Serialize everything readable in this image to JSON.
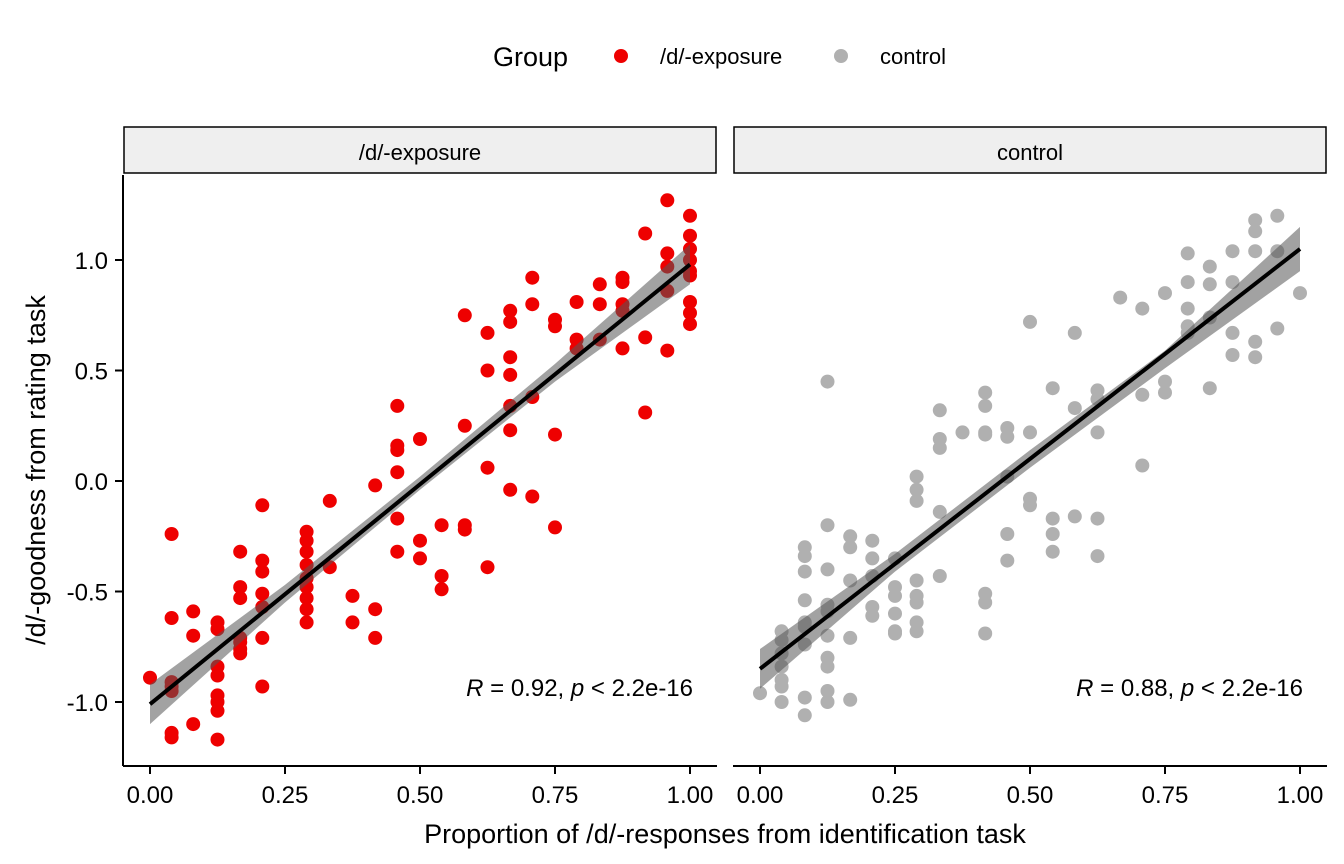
{
  "chart_data": {
    "type": "scatter",
    "xlabel": "Proportion of /d/-responses from identification task",
    "ylabel": "/d/-goodness from rating task",
    "xlim": [
      0,
      1
    ],
    "ylim": [
      -1.3,
      1.4
    ],
    "x_ticks": [
      "0.00",
      "0.25",
      "0.50",
      "0.75",
      "1.00"
    ],
    "x_tick_values": [
      0,
      0.25,
      0.5,
      0.75,
      1.0
    ],
    "y_ticks": [
      "-1.0",
      "-0.5",
      "0.0",
      "0.5",
      "1.0"
    ],
    "y_tick_values": [
      -1.0,
      -0.5,
      0.0,
      0.5,
      1.0
    ],
    "grid": false,
    "legend": {
      "title": "Group",
      "placement": "top",
      "entries": [
        {
          "label": "/d/-exposure",
          "color": "#ee0000"
        },
        {
          "label": "control",
          "color": "#b0b0b0"
        }
      ]
    },
    "panels": [
      {
        "strip": "/d/-exposure",
        "color": "#ee0000",
        "annotation": {
          "r_label": "R",
          "r_text": " = 0.92, ",
          "p_label": "p",
          "p_text": " < 2.2e-16"
        },
        "fit": {
          "x0": 0.0,
          "y0": -1.01,
          "x1": 1.0,
          "y1": 0.98
        },
        "ci": [
          {
            "x": 0.0,
            "lo": -1.1,
            "hi": -0.92
          },
          {
            "x": 0.25,
            "lo": -0.55,
            "hi": -0.47
          },
          {
            "x": 0.5,
            "lo": -0.04,
            "hi": 0.02
          },
          {
            "x": 0.75,
            "lo": 0.45,
            "hi": 0.53
          },
          {
            "x": 1.0,
            "lo": 0.89,
            "hi": 1.07
          }
        ],
        "points": [
          [
            0.0,
            -0.89
          ],
          [
            0.04,
            -0.24
          ],
          [
            0.04,
            -0.62
          ],
          [
            0.04,
            -0.91
          ],
          [
            0.04,
            -0.93
          ],
          [
            0.04,
            -0.95
          ],
          [
            0.04,
            -1.14
          ],
          [
            0.04,
            -1.16
          ],
          [
            0.08,
            -0.59
          ],
          [
            0.08,
            -0.7
          ],
          [
            0.08,
            -1.1
          ],
          [
            0.125,
            -0.64
          ],
          [
            0.125,
            -0.67
          ],
          [
            0.125,
            -0.84
          ],
          [
            0.125,
            -0.88
          ],
          [
            0.125,
            -0.97
          ],
          [
            0.125,
            -1.0
          ],
          [
            0.125,
            -1.04
          ],
          [
            0.125,
            -1.17
          ],
          [
            0.167,
            -0.32
          ],
          [
            0.167,
            -0.48
          ],
          [
            0.167,
            -0.53
          ],
          [
            0.167,
            -0.71
          ],
          [
            0.167,
            -0.73
          ],
          [
            0.167,
            -0.76
          ],
          [
            0.167,
            -0.78
          ],
          [
            0.208,
            -0.11
          ],
          [
            0.208,
            -0.36
          ],
          [
            0.208,
            -0.41
          ],
          [
            0.208,
            -0.51
          ],
          [
            0.208,
            -0.57
          ],
          [
            0.208,
            -0.71
          ],
          [
            0.208,
            -0.93
          ],
          [
            0.29,
            -0.23
          ],
          [
            0.29,
            -0.27
          ],
          [
            0.29,
            -0.32
          ],
          [
            0.29,
            -0.38
          ],
          [
            0.29,
            -0.44
          ],
          [
            0.29,
            -0.48
          ],
          [
            0.29,
            -0.53
          ],
          [
            0.29,
            -0.58
          ],
          [
            0.29,
            -0.64
          ],
          [
            0.333,
            -0.09
          ],
          [
            0.333,
            -0.39
          ],
          [
            0.375,
            -0.52
          ],
          [
            0.375,
            -0.64
          ],
          [
            0.417,
            -0.02
          ],
          [
            0.417,
            -0.58
          ],
          [
            0.417,
            -0.71
          ],
          [
            0.458,
            0.34
          ],
          [
            0.458,
            0.16
          ],
          [
            0.458,
            0.14
          ],
          [
            0.458,
            0.04
          ],
          [
            0.458,
            -0.17
          ],
          [
            0.458,
            -0.32
          ],
          [
            0.5,
            0.19
          ],
          [
            0.5,
            -0.27
          ],
          [
            0.5,
            -0.35
          ],
          [
            0.54,
            -0.2
          ],
          [
            0.54,
            -0.43
          ],
          [
            0.54,
            -0.49
          ],
          [
            0.583,
            0.75
          ],
          [
            0.583,
            0.25
          ],
          [
            0.583,
            -0.2
          ],
          [
            0.583,
            -0.22
          ],
          [
            0.625,
            0.67
          ],
          [
            0.625,
            0.5
          ],
          [
            0.625,
            0.06
          ],
          [
            0.625,
            -0.39
          ],
          [
            0.667,
            0.77
          ],
          [
            0.667,
            0.72
          ],
          [
            0.667,
            0.56
          ],
          [
            0.667,
            0.48
          ],
          [
            0.667,
            0.34
          ],
          [
            0.667,
            0.23
          ],
          [
            0.667,
            -0.04
          ],
          [
            0.708,
            0.92
          ],
          [
            0.708,
            0.8
          ],
          [
            0.708,
            0.38
          ],
          [
            0.708,
            -0.07
          ],
          [
            0.75,
            0.73
          ],
          [
            0.75,
            0.7
          ],
          [
            0.75,
            0.21
          ],
          [
            0.75,
            -0.21
          ],
          [
            0.79,
            0.81
          ],
          [
            0.79,
            0.64
          ],
          [
            0.79,
            0.6
          ],
          [
            0.833,
            0.89
          ],
          [
            0.833,
            0.8
          ],
          [
            0.833,
            0.64
          ],
          [
            0.875,
            0.92
          ],
          [
            0.875,
            0.9
          ],
          [
            0.875,
            0.8
          ],
          [
            0.875,
            0.77
          ],
          [
            0.875,
            0.6
          ],
          [
            0.917,
            1.12
          ],
          [
            0.917,
            0.65
          ],
          [
            0.917,
            0.31
          ],
          [
            0.958,
            1.27
          ],
          [
            0.958,
            1.03
          ],
          [
            0.958,
            0.97
          ],
          [
            0.958,
            0.86
          ],
          [
            0.958,
            0.59
          ],
          [
            1.0,
            1.2
          ],
          [
            1.0,
            1.11
          ],
          [
            1.0,
            1.05
          ],
          [
            1.0,
            1.0
          ],
          [
            1.0,
            0.95
          ],
          [
            1.0,
            0.93
          ],
          [
            1.0,
            0.81
          ],
          [
            1.0,
            0.76
          ],
          [
            1.0,
            0.71
          ]
        ]
      },
      {
        "strip": "control",
        "color": "#b0b0b0",
        "annotation": {
          "r_label": "R",
          "r_text": " = 0.88, ",
          "p_label": "p",
          "p_text": " < 2.2e-16"
        },
        "fit": {
          "x0": 0.0,
          "y0": -0.85,
          "x1": 1.0,
          "y1": 1.05
        },
        "ci": [
          {
            "x": 0.0,
            "lo": -0.94,
            "hi": -0.76
          },
          {
            "x": 0.25,
            "lo": -0.41,
            "hi": -0.33
          },
          {
            "x": 0.5,
            "lo": 0.06,
            "hi": 0.14
          },
          {
            "x": 0.75,
            "lo": 0.51,
            "hi": 0.59
          },
          {
            "x": 1.0,
            "lo": 0.95,
            "hi": 1.15
          }
        ],
        "points": [
          [
            0.0,
            -0.96
          ],
          [
            0.04,
            -0.68
          ],
          [
            0.04,
            -0.72
          ],
          [
            0.04,
            -0.78
          ],
          [
            0.04,
            -0.84
          ],
          [
            0.04,
            -0.9
          ],
          [
            0.04,
            -0.93
          ],
          [
            0.04,
            -1.0
          ],
          [
            0.083,
            -0.3
          ],
          [
            0.083,
            -0.34
          ],
          [
            0.083,
            -0.41
          ],
          [
            0.083,
            -0.54
          ],
          [
            0.083,
            -0.64
          ],
          [
            0.083,
            -0.66
          ],
          [
            0.083,
            -0.74
          ],
          [
            0.083,
            -0.98
          ],
          [
            0.083,
            -1.06
          ],
          [
            0.125,
            0.45
          ],
          [
            0.125,
            -0.2
          ],
          [
            0.125,
            -0.4
          ],
          [
            0.125,
            -0.56
          ],
          [
            0.125,
            -0.59
          ],
          [
            0.125,
            -0.7
          ],
          [
            0.125,
            -0.8
          ],
          [
            0.125,
            -0.84
          ],
          [
            0.125,
            -0.95
          ],
          [
            0.125,
            -1.0
          ],
          [
            0.167,
            -0.25
          ],
          [
            0.167,
            -0.3
          ],
          [
            0.167,
            -0.45
          ],
          [
            0.167,
            -0.71
          ],
          [
            0.167,
            -0.99
          ],
          [
            0.208,
            -0.27
          ],
          [
            0.208,
            -0.35
          ],
          [
            0.208,
            -0.43
          ],
          [
            0.208,
            -0.57
          ],
          [
            0.208,
            -0.61
          ],
          [
            0.25,
            -0.35
          ],
          [
            0.25,
            -0.48
          ],
          [
            0.25,
            -0.52
          ],
          [
            0.25,
            -0.6
          ],
          [
            0.25,
            -0.68
          ],
          [
            0.25,
            -0.69
          ],
          [
            0.29,
            0.02
          ],
          [
            0.29,
            -0.04
          ],
          [
            0.29,
            -0.09
          ],
          [
            0.29,
            -0.45
          ],
          [
            0.29,
            -0.52
          ],
          [
            0.29,
            -0.55
          ],
          [
            0.29,
            -0.64
          ],
          [
            0.29,
            -0.68
          ],
          [
            0.333,
            0.32
          ],
          [
            0.333,
            0.19
          ],
          [
            0.333,
            0.15
          ],
          [
            0.333,
            -0.14
          ],
          [
            0.333,
            -0.43
          ],
          [
            0.375,
            0.22
          ],
          [
            0.417,
            0.4
          ],
          [
            0.417,
            0.34
          ],
          [
            0.417,
            0.22
          ],
          [
            0.417,
            0.21
          ],
          [
            0.417,
            -0.51
          ],
          [
            0.417,
            -0.55
          ],
          [
            0.417,
            -0.69
          ],
          [
            0.458,
            0.24
          ],
          [
            0.458,
            0.2
          ],
          [
            0.458,
            0.02
          ],
          [
            0.458,
            -0.24
          ],
          [
            0.458,
            -0.36
          ],
          [
            0.5,
            0.72
          ],
          [
            0.5,
            0.22
          ],
          [
            0.5,
            -0.08
          ],
          [
            0.5,
            -0.11
          ],
          [
            0.542,
            0.42
          ],
          [
            0.542,
            -0.17
          ],
          [
            0.542,
            -0.24
          ],
          [
            0.542,
            -0.32
          ],
          [
            0.583,
            0.67
          ],
          [
            0.583,
            0.33
          ],
          [
            0.583,
            -0.16
          ],
          [
            0.625,
            0.41
          ],
          [
            0.625,
            0.37
          ],
          [
            0.625,
            0.22
          ],
          [
            0.625,
            -0.17
          ],
          [
            0.625,
            -0.34
          ],
          [
            0.667,
            0.83
          ],
          [
            0.708,
            0.78
          ],
          [
            0.708,
            0.39
          ],
          [
            0.708,
            0.07
          ],
          [
            0.75,
            0.85
          ],
          [
            0.75,
            0.45
          ],
          [
            0.75,
            0.4
          ],
          [
            0.792,
            1.03
          ],
          [
            0.792,
            0.9
          ],
          [
            0.792,
            0.78
          ],
          [
            0.792,
            0.7
          ],
          [
            0.792,
            0.67
          ],
          [
            0.833,
            0.97
          ],
          [
            0.833,
            0.89
          ],
          [
            0.833,
            0.74
          ],
          [
            0.833,
            0.42
          ],
          [
            0.875,
            1.04
          ],
          [
            0.875,
            0.9
          ],
          [
            0.875,
            0.67
          ],
          [
            0.875,
            0.57
          ],
          [
            0.917,
            1.18
          ],
          [
            0.917,
            1.13
          ],
          [
            0.917,
            1.04
          ],
          [
            0.917,
            0.63
          ],
          [
            0.917,
            0.56
          ],
          [
            0.958,
            1.2
          ],
          [
            0.958,
            1.04
          ],
          [
            0.958,
            0.69
          ],
          [
            1.0,
            0.85
          ]
        ]
      }
    ]
  }
}
